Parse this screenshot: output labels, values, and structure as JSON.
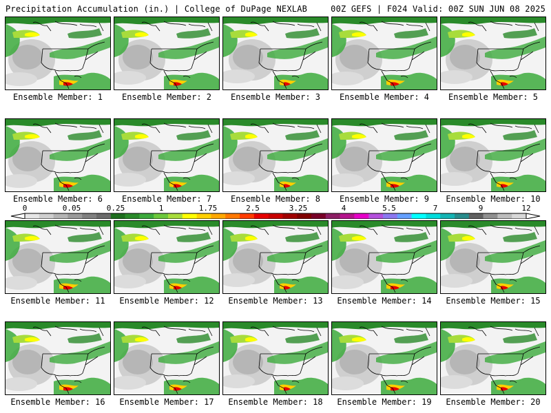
{
  "header": {
    "left": "Precipitation Accumulation (in.) | College of DuPage NEXLAB",
    "right": "00Z GEFS | F024 Valid: 00Z SUN JUN 08 2025"
  },
  "members": [
    {
      "label": "Ensemble Member: 1"
    },
    {
      "label": "Ensemble Member: 2"
    },
    {
      "label": "Ensemble Member: 3"
    },
    {
      "label": "Ensemble Member: 4"
    },
    {
      "label": "Ensemble Member: 5"
    },
    {
      "label": "Ensemble Member: 6"
    },
    {
      "label": "Ensemble Member: 7"
    },
    {
      "label": "Ensemble Member: 8"
    },
    {
      "label": "Ensemble Member: 9"
    },
    {
      "label": "Ensemble Member: 10"
    },
    {
      "label": "Ensemble Member: 11"
    },
    {
      "label": "Ensemble Member: 12"
    },
    {
      "label": "Ensemble Member: 13"
    },
    {
      "label": "Ensemble Member: 14"
    },
    {
      "label": "Ensemble Member: 15"
    },
    {
      "label": "Ensemble Member: 16"
    },
    {
      "label": "Ensemble Member: 17"
    },
    {
      "label": "Ensemble Member: 18"
    },
    {
      "label": "Ensemble Member: 19"
    },
    {
      "label": "Ensemble Member: 20"
    }
  ],
  "legend": {
    "tick_labels": [
      "0",
      "0.05",
      "0.25",
      "1",
      "1.75",
      "2.5",
      "3.25",
      "4",
      "5.5",
      "7",
      "9",
      "12"
    ],
    "colors": [
      "#e6e6e6",
      "#cfcfcf",
      "#b4b4b4",
      "#9a9a9a",
      "#808080",
      "#6b6b6b",
      "#1e6e1e",
      "#2a8a2a",
      "#3caa3c",
      "#6cc83c",
      "#a8dc3c",
      "#ffff00",
      "#ffd000",
      "#ffa800",
      "#ff7800",
      "#ff3c00",
      "#e60000",
      "#c80000",
      "#a00000",
      "#800000",
      "#780028",
      "#8c1e64",
      "#b4148c",
      "#e600c8",
      "#b450dc",
      "#8c78f0",
      "#64a0ff",
      "#00ffff",
      "#00dcdc",
      "#14b4b4",
      "#288c8c",
      "#606060",
      "#909090",
      "#bdbdbd",
      "#d8d8d8"
    ]
  }
}
